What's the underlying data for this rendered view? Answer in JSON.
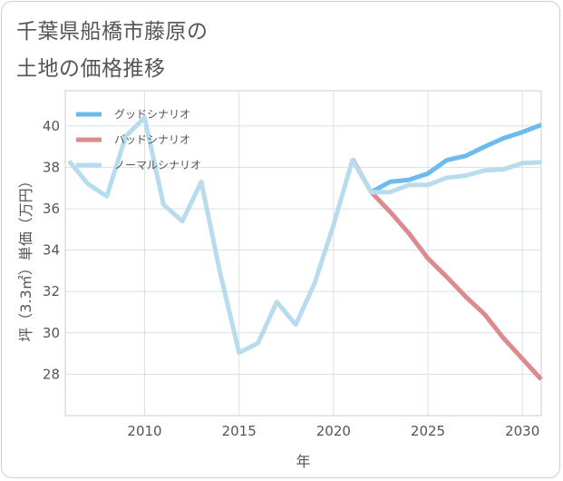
{
  "header": {
    "title_line1": "千葉県船橋市藤原の",
    "title_line2": "土地の価格推移"
  },
  "chart_data": {
    "type": "line",
    "title": "千葉県船橋市藤原の土地の価格推移",
    "xlabel": "年",
    "ylabel": "坪（3.3㎡）単価（万円）",
    "xlim": [
      2005.8,
      2031
    ],
    "ylim": [
      26,
      41.7
    ],
    "grid": true,
    "legend_position": "top-left",
    "x_ticks": [
      2010,
      2015,
      2020,
      2025,
      2030
    ],
    "y_ticks": [
      28,
      30,
      32,
      34,
      36,
      38,
      40
    ],
    "x_tick_labels": [
      "2010",
      "2015",
      "2020",
      "2025",
      "2030"
    ],
    "y_tick_labels": [
      "28",
      "30",
      "32",
      "34",
      "36",
      "38",
      "40"
    ],
    "series": [
      {
        "name": "グッドシナリオ",
        "color": "#6bbbf0",
        "x": [
          2022,
          2023,
          2024,
          2025,
          2026,
          2027,
          2028,
          2029,
          2030,
          2031
        ],
        "values": [
          36.8,
          37.3,
          37.4,
          37.7,
          38.35,
          38.55,
          39.0,
          39.4,
          39.7,
          40.05
        ]
      },
      {
        "name": "バッドシナリオ",
        "color": "#dc8a90",
        "x": [
          2021,
          2022,
          2023,
          2024,
          2025,
          2026,
          2027,
          2028,
          2029,
          2030,
          2031
        ],
        "values": [
          38.4,
          36.8,
          35.85,
          34.8,
          33.6,
          32.7,
          31.75,
          30.9,
          29.75,
          28.75,
          27.75
        ]
      },
      {
        "name": "ノーマルシナリオ",
        "color": "#b8dcee",
        "x": [
          2006,
          2007,
          2008,
          2009,
          2010,
          2011,
          2012,
          2013,
          2014,
          2015,
          2016,
          2017,
          2018,
          2019,
          2020,
          2021,
          2022,
          2023,
          2024,
          2025,
          2026,
          2027,
          2028,
          2029,
          2030,
          2031
        ],
        "values": [
          38.3,
          37.2,
          36.6,
          39.5,
          40.4,
          36.2,
          35.4,
          37.3,
          32.9,
          29.05,
          29.5,
          31.5,
          30.4,
          32.4,
          35.2,
          38.35,
          36.8,
          36.8,
          37.15,
          37.15,
          37.5,
          37.6,
          37.85,
          37.9,
          38.2,
          38.25
        ]
      }
    ]
  }
}
